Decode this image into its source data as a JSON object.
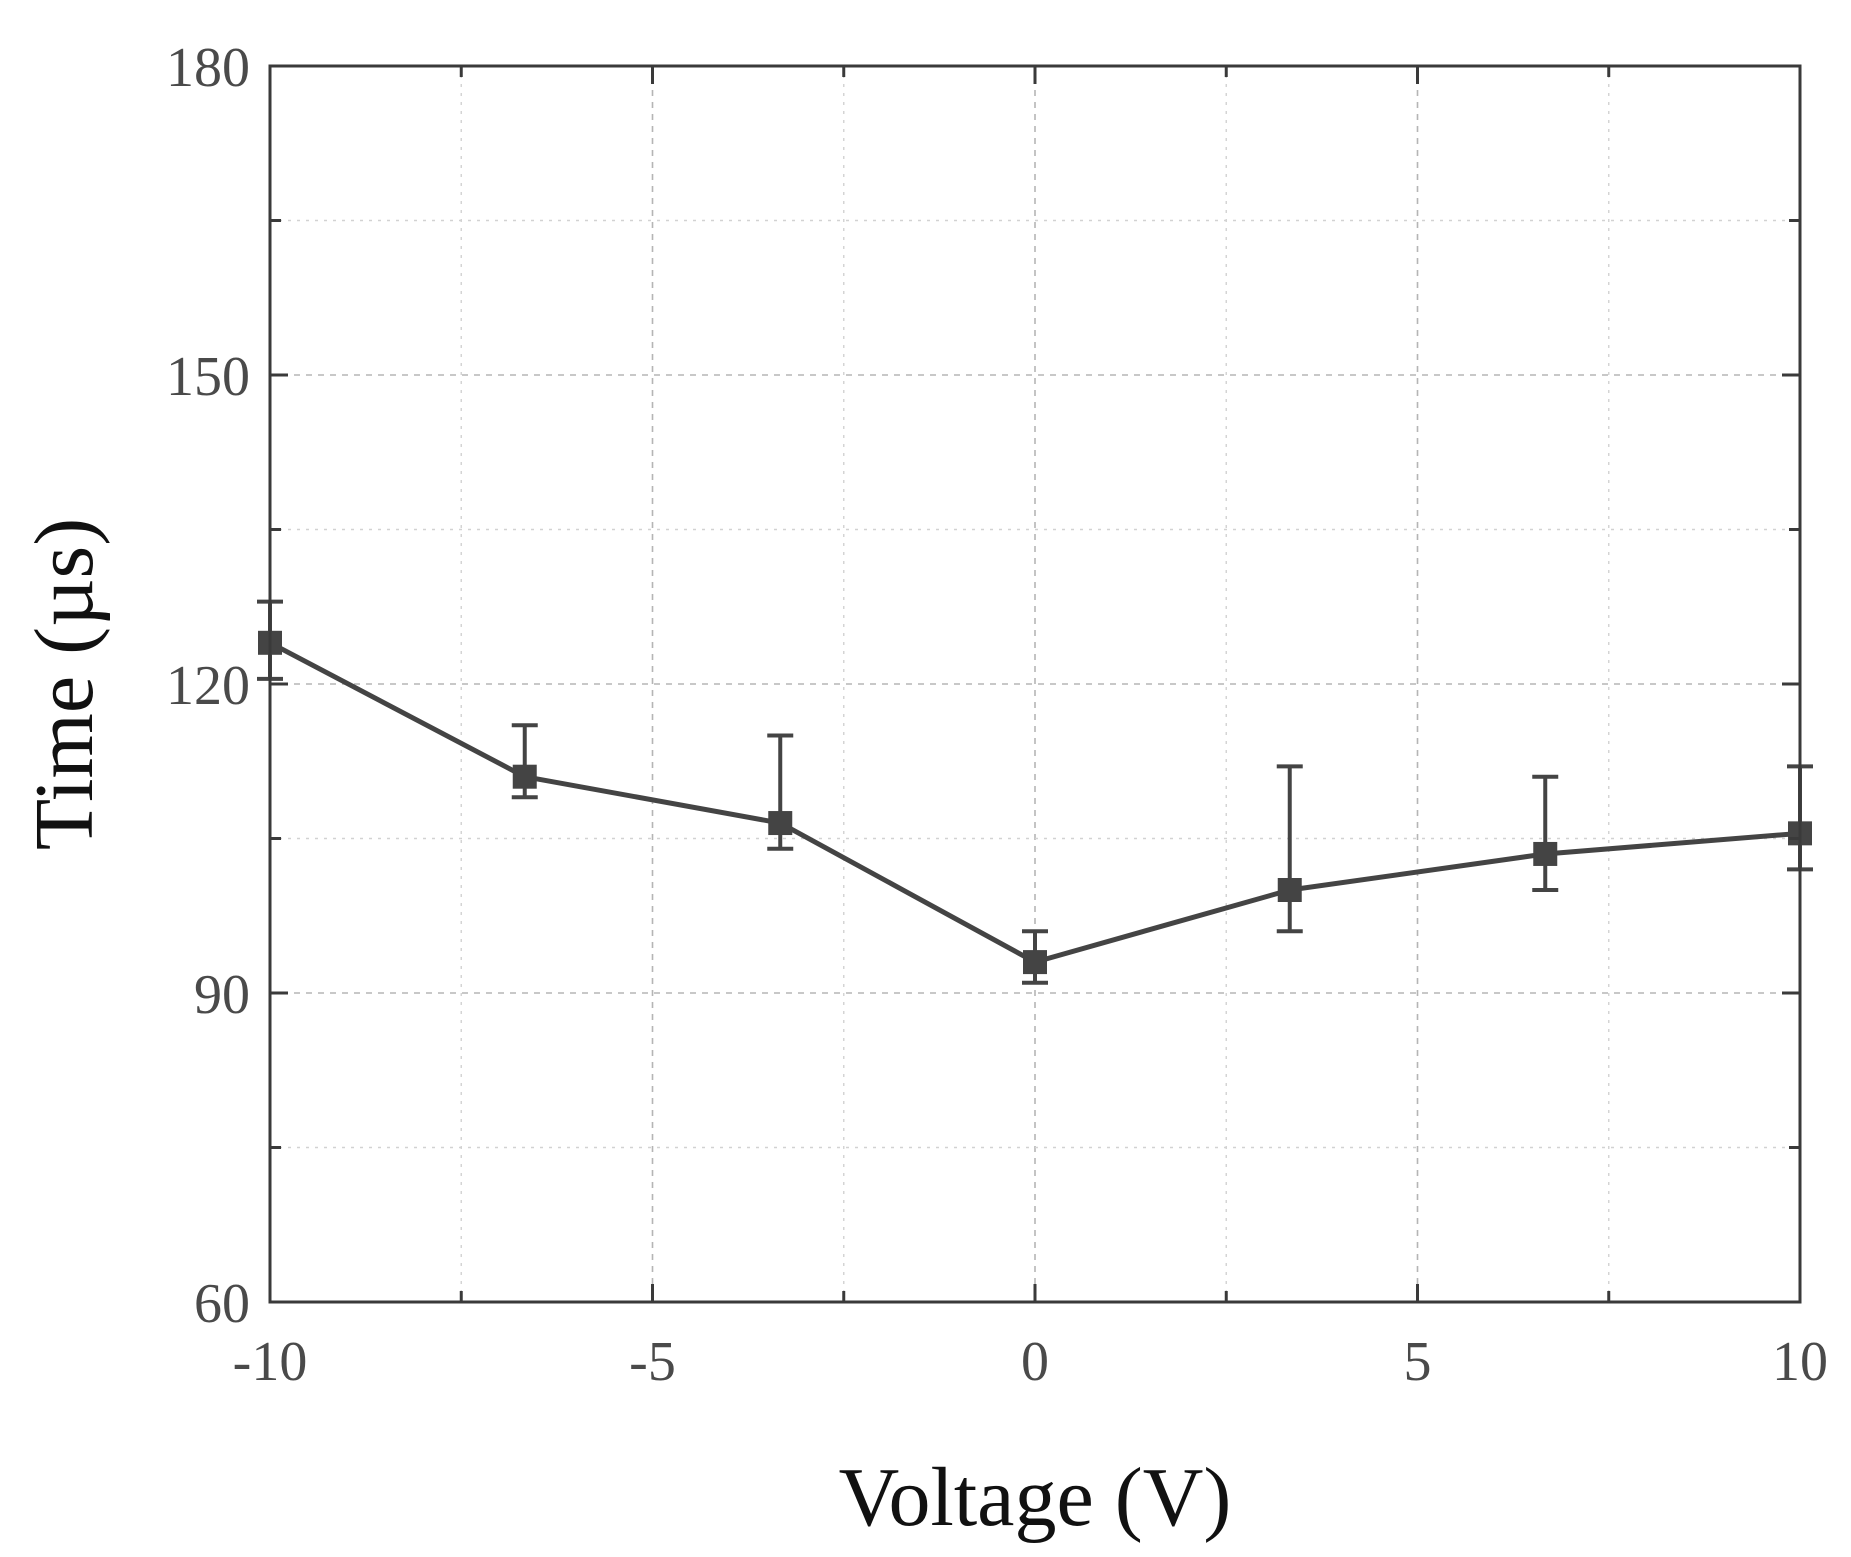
{
  "chart_data": {
    "type": "line",
    "title": "",
    "xlabel": "Voltage (V)",
    "ylabel": "Time (µs)",
    "xlim": [
      -10,
      10
    ],
    "ylim": [
      60,
      180
    ],
    "x_ticks": [
      -10,
      -5,
      0,
      5,
      10
    ],
    "x_tick_labels": [
      "-10",
      "-5",
      "0",
      "5",
      "10"
    ],
    "x_minor_ticks": [
      -7.5,
      -2.5,
      2.5,
      7.5
    ],
    "y_ticks": [
      60,
      90,
      120,
      150,
      180
    ],
    "y_tick_labels": [
      "60",
      "90",
      "120",
      "150",
      "180"
    ],
    "y_minor_ticks": [
      75,
      105,
      135,
      165
    ],
    "grid": true,
    "legend": "none",
    "series": [
      {
        "name": "Time",
        "color": "#444444",
        "marker": "square",
        "x": [
          -10,
          -6.67,
          -3.33,
          0,
          3.33,
          6.67,
          10
        ],
        "y": [
          124,
          111,
          106.5,
          93,
          100,
          103.5,
          105.5
        ],
        "err_upper": [
          4,
          5,
          8.5,
          3,
          12,
          7.5,
          6.5
        ],
        "err_lower": [
          3.5,
          2,
          2.5,
          2,
          4,
          3.5,
          3.5
        ]
      }
    ]
  }
}
